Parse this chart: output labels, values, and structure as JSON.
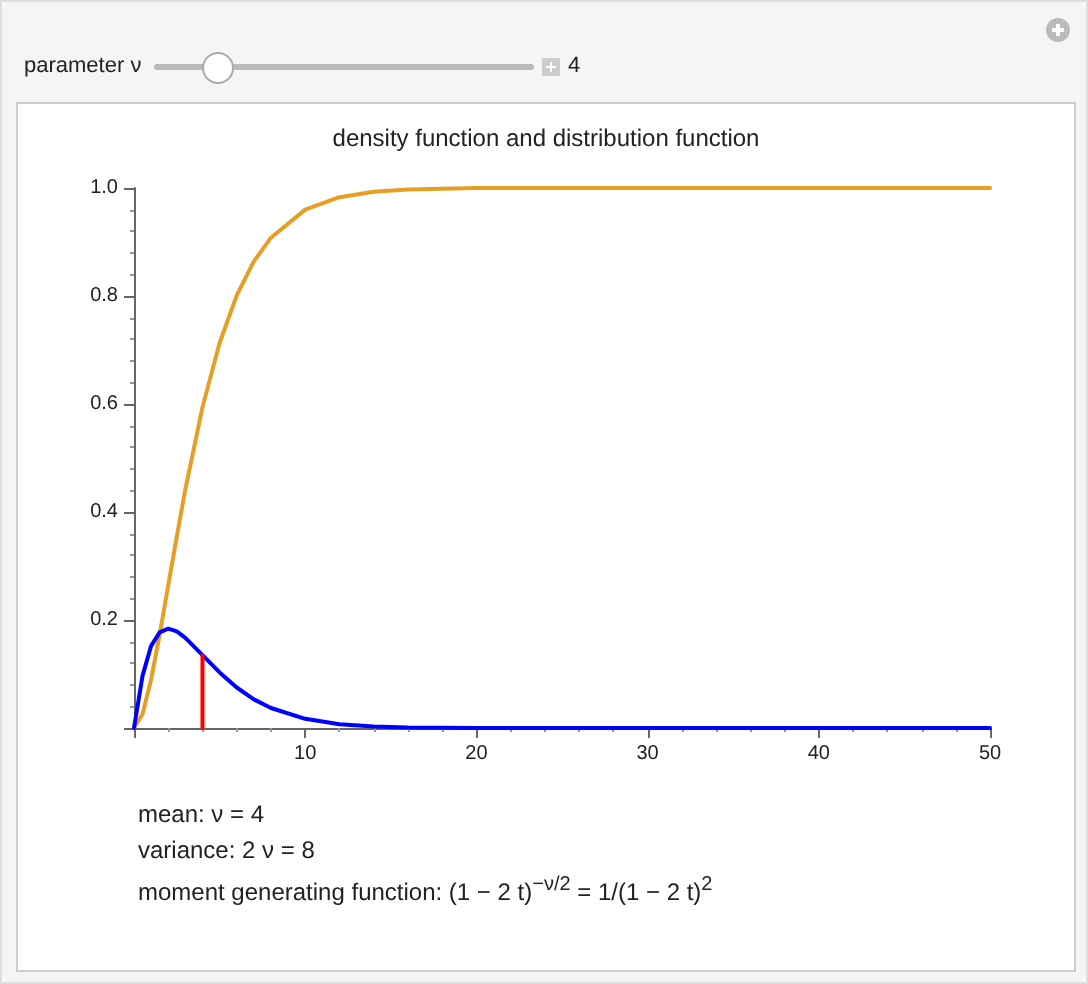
{
  "chart_data": {
    "type": "line",
    "title": "density function and distribution function",
    "x": [
      0,
      0.5,
      1,
      1.5,
      2,
      2.5,
      3,
      4,
      5,
      6,
      7,
      8,
      10,
      12,
      14,
      16,
      20,
      25,
      30,
      40,
      50
    ],
    "series": [
      {
        "color": "#e69f24",
        "values": [
          0,
          0.026,
          0.09,
          0.173,
          0.264,
          0.355,
          0.442,
          0.594,
          0.713,
          0.801,
          0.864,
          0.908,
          0.96,
          0.983,
          0.993,
          0.997,
          1.0,
          1.0,
          1.0,
          1.0,
          1.0
        ]
      },
      {
        "color": "#0000ff",
        "values": [
          0,
          0.097,
          0.152,
          0.177,
          0.184,
          0.179,
          0.167,
          0.135,
          0.103,
          0.075,
          0.053,
          0.037,
          0.017,
          0.007,
          0.003,
          0.001,
          0,
          0,
          0,
          0,
          0
        ]
      },
      {
        "color": "#ff0000",
        "x": [
          4,
          4
        ],
        "values": [
          0,
          0.135
        ]
      }
    ],
    "xlim": [
      0,
      50
    ],
    "xticks": [
      {
        "value": 0,
        "label": null
      },
      10,
      20,
      30,
      40,
      50
    ],
    "ylim": [
      0,
      1
    ],
    "yticks": [
      {
        "value": 0,
        "label": null
      },
      0.2,
      0.4,
      0.6,
      0.8,
      {
        "value": 1,
        "label": "1.0"
      }
    ],
    "grid": false,
    "marker": "none",
    "line_style": "solid",
    "annotations": [
      "parameter ν",
      "4",
      "mean: ν = 4",
      "variance: 2 ν = 8",
      "moment generating function: (1 − 2 t)$^{−ν/2}$ = 1/(1 − 2 t)$^{2}$"
    ]
  }
}
